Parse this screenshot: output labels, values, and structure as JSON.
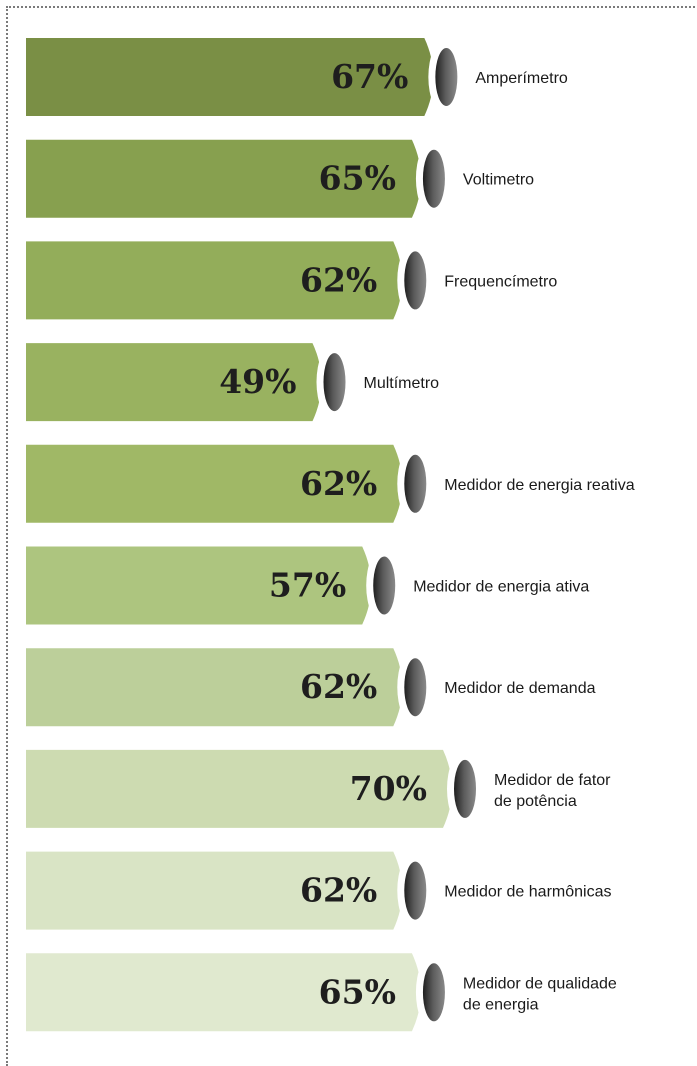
{
  "chart_data": {
    "type": "bar",
    "orientation": "horizontal",
    "title": "",
    "xlabel": "",
    "ylabel": "",
    "value_suffix": "%",
    "categories": [
      "Amperímetro",
      "Voltimetro",
      "Frequencímetro",
      "Multímetro",
      "Medidor de energia reativa",
      "Medidor de energia ativa",
      "Medidor de demanda",
      "Medidor de fator de potência",
      "Medidor de harmônicas",
      "Medidor de qualidade de energia"
    ],
    "category_lines": [
      [
        "Amperímetro"
      ],
      [
        "Voltimetro"
      ],
      [
        "Frequencímetro"
      ],
      [
        "Multímetro"
      ],
      [
        "Medidor de energia reativa"
      ],
      [
        "Medidor de energia ativa"
      ],
      [
        "Medidor de demanda"
      ],
      [
        "Medidor de fator",
        "de potência"
      ],
      [
        "Medidor de harmônicas"
      ],
      [
        "Medidor de qualidade",
        "de energia"
      ]
    ],
    "values": [
      67,
      65,
      62,
      49,
      62,
      57,
      62,
      70,
      62,
      65
    ],
    "value_labels": [
      "67%",
      "65%",
      "62%",
      "49%",
      "62%",
      "57%",
      "62%",
      "70%",
      "62%",
      "65%"
    ],
    "bar_colors": [
      "#7a8f45",
      "#87a04f",
      "#93ad5a",
      "#99b260",
      "#a0b866",
      "#adc57f",
      "#bccf9a",
      "#cddbb1",
      "#d9e4c5",
      "#e0e9cf"
    ],
    "cap_color": "#444444",
    "grid": false,
    "legend": "none"
  }
}
